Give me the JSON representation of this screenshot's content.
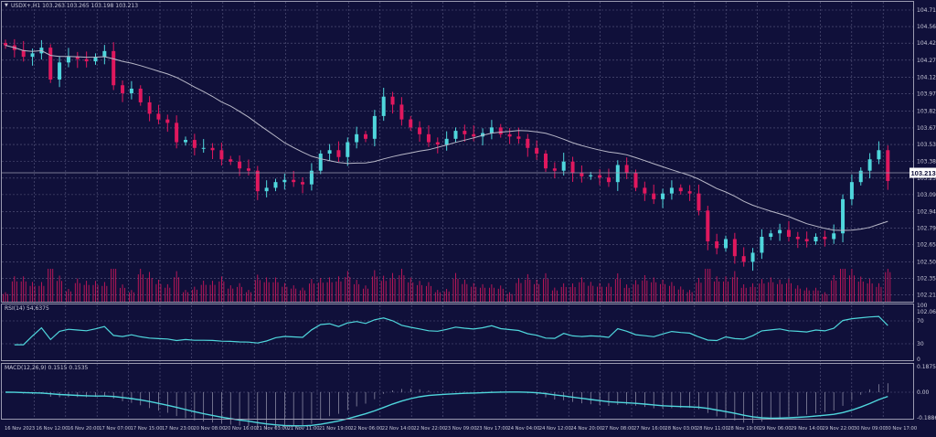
{
  "header": {
    "symbol_info": "USDX+,H1  103.263 103.265 103.198 103.213"
  },
  "colors": {
    "background": "#10103a",
    "up": "#4fd6dc",
    "down": "#e0185e",
    "ma": "#b8b8c8",
    "rsi": "#4fd6dc",
    "macd": "#4fd6dc",
    "grid": "#5a5a80",
    "volume": "#e0185e"
  },
  "chart_data": [
    {
      "type": "candlestick",
      "title": "USDX+,H1",
      "y_ticks": [
        "104.710",
        "104.565",
        "104.420",
        "104.270",
        "104.120",
        "103.975",
        "103.825",
        "103.675",
        "103.530",
        "103.380",
        "103.235",
        "103.090",
        "102.940",
        "102.795",
        "102.650",
        "102.500",
        "102.355",
        "102.210",
        "102.060"
      ],
      "ylim": [
        102.06,
        104.71
      ],
      "current_price": "103.213",
      "x_ticks": [
        "16 Nov 2023",
        "16 Nov 12:00",
        "16 Nov 20:00",
        "17 Nov 07:00",
        "17 Nov 15:00",
        "17 Nov 23:00",
        "20 Nov 08:00",
        "20 Nov 16:00",
        "21 Nov 03:00",
        "21 Nov 11:00",
        "21 Nov 19:00",
        "22 Nov 06:00",
        "22 Nov 14:00",
        "22 Nov 22:00",
        "23 Nov 09:00",
        "23 Nov 17:00",
        "24 Nov 04:00",
        "24 Nov 12:00",
        "24 Nov 20:00",
        "27 Nov 08:00",
        "27 Nov 16:00",
        "28 Nov 03:00",
        "28 Nov 11:00",
        "28 Nov 19:00",
        "29 Nov 06:00",
        "29 Nov 14:00",
        "29 Nov 22:00",
        "30 Nov 09:00",
        "30 Nov 17:00"
      ],
      "closes": [
        104.4,
        104.36,
        104.3,
        104.33,
        104.38,
        104.1,
        104.25,
        104.3,
        104.28,
        104.26,
        104.3,
        104.35,
        104.05,
        103.98,
        104.02,
        103.9,
        103.8,
        103.75,
        103.72,
        103.55,
        103.57,
        103.5,
        103.5,
        103.48,
        103.4,
        103.38,
        103.32,
        103.3,
        103.12,
        103.15,
        103.2,
        103.22,
        103.2,
        103.18,
        103.3,
        103.45,
        103.48,
        103.42,
        103.55,
        103.62,
        103.58,
        103.78,
        103.95,
        103.88,
        103.75,
        103.68,
        103.62,
        103.55,
        103.53,
        103.58,
        103.65,
        103.62,
        103.6,
        103.63,
        103.68,
        103.62,
        103.6,
        103.58,
        103.5,
        103.45,
        103.32,
        103.3,
        103.38,
        103.28,
        103.25,
        103.26,
        103.24,
        103.2,
        103.35,
        103.28,
        103.15,
        103.1,
        103.05,
        103.1,
        103.15,
        103.12,
        103.1,
        102.95,
        102.68,
        102.62,
        102.7,
        102.55,
        102.5,
        102.58,
        102.72,
        102.75,
        102.78,
        102.72,
        102.7,
        102.68,
        102.72,
        102.7,
        102.75,
        103.05,
        103.2,
        103.3,
        103.4,
        103.48,
        103.21
      ],
      "moving_average": "20",
      "grid": true
    },
    {
      "type": "line",
      "title": "RSI(14) 54.6375",
      "y_ticks": [
        "100",
        "70",
        "30",
        "0"
      ],
      "ylim": [
        0,
        100
      ]
    },
    {
      "type": "bar+line",
      "title": "MACD(12,26,9) 0.1515 0.1535",
      "y_ticks": [
        "0.1875",
        "0.00",
        "-0.1886"
      ],
      "ylim": [
        -0.1886,
        0.1875
      ]
    }
  ]
}
